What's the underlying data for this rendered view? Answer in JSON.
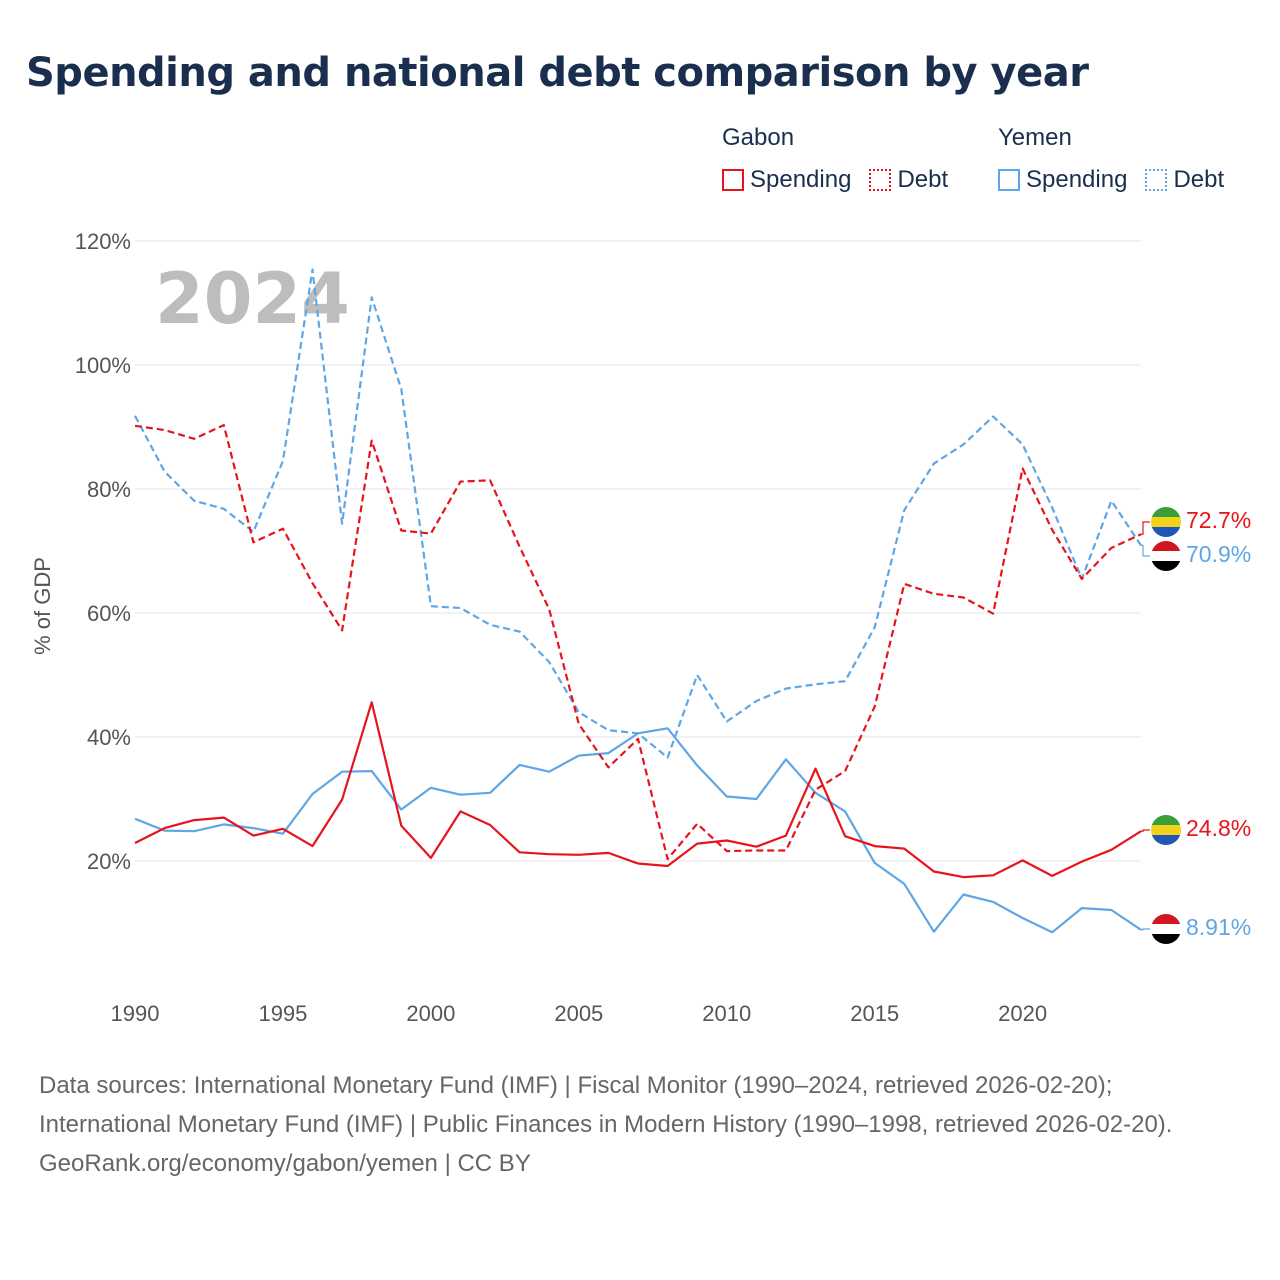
{
  "title": "Spending and national debt comparison by year",
  "colors": {
    "gabon": "#e8141b",
    "yemen": "#5ea6e5",
    "title": "#1a2f4e"
  },
  "legend": {
    "groups": [
      {
        "name": "Gabon",
        "items": [
          {
            "label": "Spending",
            "style": "solid"
          },
          {
            "label": "Debt",
            "style": "dotted"
          }
        ]
      },
      {
        "name": "Yemen",
        "items": [
          {
            "label": "Spending",
            "style": "solid"
          },
          {
            "label": "Debt",
            "style": "dotted"
          }
        ]
      }
    ]
  },
  "chart_data": {
    "type": "line",
    "ylabel": "% of GDP",
    "year_watermark": "2024",
    "xlim": [
      1990,
      2024
    ],
    "ylim": [
      0,
      120
    ],
    "x_ticks": [
      1990,
      1995,
      2000,
      2005,
      2010,
      2015,
      2020
    ],
    "y_ticks": [
      20,
      40,
      60,
      80,
      100,
      120
    ],
    "y_tick_labels": [
      "20%",
      "40%",
      "60%",
      "80%",
      "100%",
      "120%"
    ],
    "x": [
      1990,
      1991,
      1992,
      1993,
      1994,
      1995,
      1996,
      1997,
      1998,
      1999,
      2000,
      2001,
      2002,
      2003,
      2004,
      2005,
      2006,
      2007,
      2008,
      2009,
      2010,
      2011,
      2012,
      2013,
      2014,
      2015,
      2016,
      2017,
      2018,
      2019,
      2020,
      2021,
      2022,
      2023,
      2024
    ],
    "series": [
      {
        "name": "Gabon Spending",
        "country": "gabon",
        "kind": "spending",
        "values": [
          22.9,
          25.3,
          26.6,
          27.0,
          24.1,
          25.2,
          22.4,
          29.9,
          45.6,
          25.7,
          20.5,
          28.0,
          25.8,
          21.4,
          21.1,
          21.0,
          21.3,
          19.6,
          19.2,
          22.8,
          23.3,
          22.3,
          24.1,
          34.9,
          24.0,
          22.4,
          22.0,
          18.3,
          17.4,
          17.7,
          20.1,
          17.6,
          19.9,
          21.8,
          24.8
        ],
        "end_label": "24.8%"
      },
      {
        "name": "Gabon Debt",
        "country": "gabon",
        "kind": "debt",
        "values": [
          90.2,
          89.5,
          88.1,
          90.3,
          71.4,
          73.6,
          64.8,
          57.2,
          87.8,
          73.3,
          72.8,
          81.2,
          81.4,
          70.7,
          60.6,
          42.1,
          35.1,
          39.7,
          20.3,
          26.0,
          21.6,
          21.7,
          21.7,
          31.5,
          34.5,
          44.9,
          64.7,
          63.1,
          62.5,
          59.9,
          83.3,
          73.4,
          65.5,
          70.5,
          72.7
        ],
        "end_label": "72.7%"
      },
      {
        "name": "Yemen Spending",
        "country": "yemen",
        "kind": "spending",
        "values": [
          26.8,
          24.9,
          24.8,
          25.9,
          25.3,
          24.4,
          30.8,
          34.4,
          34.5,
          28.3,
          31.8,
          30.7,
          31.0,
          35.5,
          34.4,
          37.0,
          37.4,
          40.6,
          41.4,
          35.4,
          30.4,
          30.0,
          36.4,
          31.0,
          28.0,
          19.7,
          16.3,
          8.6,
          14.6,
          13.4,
          10.8,
          8.5,
          12.4,
          12.1,
          8.91
        ],
        "end_label": "8.91%"
      },
      {
        "name": "Yemen Debt",
        "country": "yemen",
        "kind": "debt",
        "values": [
          91.8,
          82.8,
          78.1,
          76.8,
          73.1,
          84.5,
          115.4,
          74.4,
          110.9,
          96.1,
          61.1,
          60.8,
          58.1,
          57.0,
          52.1,
          44.0,
          41.1,
          40.6,
          36.7,
          50.0,
          42.5,
          45.8,
          47.8,
          48.5,
          49.0,
          57.7,
          76.6,
          84.1,
          87.2,
          91.7,
          87.2,
          77.0,
          65.5,
          78.1,
          70.9
        ],
        "end_label": "70.9%"
      }
    ]
  },
  "footer": {
    "sources": "Data sources: International Monetary Fund (IMF) | Fiscal Monitor (1990–2024, retrieved 2026-02-20); International Monetary Fund (IMF) | Public Finances in Modern History (1990–1998, retrieved 2026-02-20).",
    "credit": "GeoRank.org/economy/gabon/yemen | CC BY"
  }
}
